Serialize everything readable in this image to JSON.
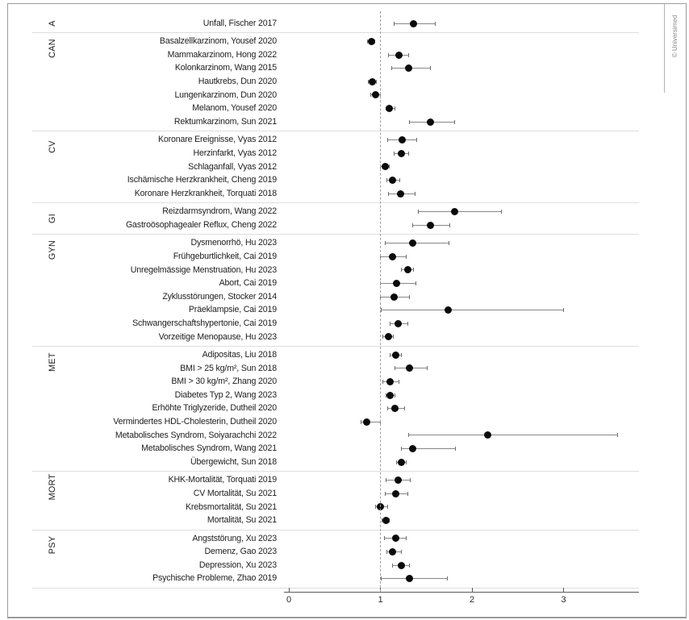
{
  "frame": {
    "copyright": "© Universimed"
  },
  "colors": {
    "point": "#0a0a0a",
    "ci_line": "#878787",
    "ci_cap": "#6d6d6d",
    "separator": "#dedede",
    "axis": "#5a5a5a",
    "reference_dash": "#9f9f9f",
    "text": "#1c1c1c",
    "frame_border": "#9b9b9b",
    "copyright_text": "#8a8a8a"
  },
  "chart_data": {
    "type": "scatter",
    "subtype": "forest-plot",
    "title": "",
    "xlabel": "",
    "ylabel": "",
    "x_axis": {
      "min": 0,
      "max": 3.82,
      "ticks": [
        0,
        1,
        2,
        3
      ],
      "reference_line": 1,
      "grid": false
    },
    "groups": [
      {
        "label": "A",
        "items": [
          {
            "label": "Unfall, Fischer 2017",
            "estimate": 1.36,
            "ci_low": 1.15,
            "ci_high": 1.6
          }
        ]
      },
      {
        "label": "CAN",
        "items": [
          {
            "label": "Basalzellkarzinom, Yousef 2020",
            "estimate": 0.9,
            "ci_low": 0.86,
            "ci_high": 0.94
          },
          {
            "label": "Mammakarzinom, Hong 2022",
            "estimate": 1.2,
            "ci_low": 1.09,
            "ci_high": 1.31
          },
          {
            "label": "Kolonkarzinom, Wang 2015",
            "estimate": 1.31,
            "ci_low": 1.12,
            "ci_high": 1.55
          },
          {
            "label": "Hautkrebs, Dun 2020",
            "estimate": 0.91,
            "ci_low": 0.87,
            "ci_high": 0.96
          },
          {
            "label": "Lungenkarzinom, Dun 2020",
            "estimate": 0.95,
            "ci_low": 0.89,
            "ci_high": 1.0
          },
          {
            "label": "Melanom, Yousef 2020",
            "estimate": 1.1,
            "ci_low": 1.06,
            "ci_high": 1.16
          },
          {
            "label": "Rektumkarzinom, Sun 2021",
            "estimate": 1.55,
            "ci_low": 1.32,
            "ci_high": 1.81
          }
        ]
      },
      {
        "label": "CV",
        "items": [
          {
            "label": "Koronare Ereignisse, Vyas 2012",
            "estimate": 1.24,
            "ci_low": 1.08,
            "ci_high": 1.4
          },
          {
            "label": "Herzinfarkt, Vyas 2012",
            "estimate": 1.23,
            "ci_low": 1.15,
            "ci_high": 1.31
          },
          {
            "label": "Schlaganfall, Vyas 2012",
            "estimate": 1.05,
            "ci_low": 1.0,
            "ci_high": 1.1
          },
          {
            "label": "Ischämische Herzkrankheit, Cheng 2019",
            "estimate": 1.13,
            "ci_low": 1.07,
            "ci_high": 1.21
          },
          {
            "label": "Koronare Herzkrankheit, Torquati 2018",
            "estimate": 1.22,
            "ci_low": 1.09,
            "ci_high": 1.38
          }
        ]
      },
      {
        "label": "GI",
        "items": [
          {
            "label": "Reizdarmsyndrom, Wang 2022",
            "estimate": 1.81,
            "ci_low": 1.41,
            "ci_high": 2.32
          },
          {
            "label": "Gastroösophagealer Reflux, Cheng 2022",
            "estimate": 1.55,
            "ci_low": 1.35,
            "ci_high": 1.76
          }
        ]
      },
      {
        "label": "GYN",
        "items": [
          {
            "label": "Dysmenorrhö, Hu 2023",
            "estimate": 1.35,
            "ci_low": 1.05,
            "ci_high": 1.75
          },
          {
            "label": "Frühgeburtlichkeit, Cai 2019",
            "estimate": 1.13,
            "ci_low": 1.0,
            "ci_high": 1.28
          },
          {
            "label": "Unregelmässige Menstruation, Hu 2023",
            "estimate": 1.3,
            "ci_low": 1.23,
            "ci_high": 1.36
          },
          {
            "label": "Abort, Cai 2019",
            "estimate": 1.18,
            "ci_low": 1.0,
            "ci_high": 1.39
          },
          {
            "label": "Zyklusstörungen, Stocker 2014",
            "estimate": 1.15,
            "ci_low": 1.0,
            "ci_high": 1.32
          },
          {
            "label": "Präeklampsie, Cai 2019",
            "estimate": 1.74,
            "ci_low": 1.01,
            "ci_high": 3.0
          },
          {
            "label": "Schwangerschaftshypertonie, Cai 2019",
            "estimate": 1.19,
            "ci_low": 1.11,
            "ci_high": 1.3
          },
          {
            "label": "Vorzeitige Menopause, Hu 2023",
            "estimate": 1.09,
            "ci_low": 1.03,
            "ci_high": 1.14
          }
        ]
      },
      {
        "label": "MET",
        "items": [
          {
            "label": "Adipositas, Liu 2018",
            "estimate": 1.17,
            "ci_low": 1.11,
            "ci_high": 1.23
          },
          {
            "label": "BMI > 25 kg/m², Sun 2018",
            "estimate": 1.32,
            "ci_low": 1.16,
            "ci_high": 1.51
          },
          {
            "label": "BMI > 30 kg/m², Zhang 2020",
            "estimate": 1.11,
            "ci_low": 1.03,
            "ci_high": 1.2
          },
          {
            "label": "Diabetes Typ 2, Wang 2023",
            "estimate": 1.11,
            "ci_low": 1.06,
            "ci_high": 1.16
          },
          {
            "label": "Erhöhte Triglyzeride, Dutheil 2020",
            "estimate": 1.16,
            "ci_low": 1.08,
            "ci_high": 1.26
          },
          {
            "label": "Vermindertes HDL-Cholesterin, Dutheil 2020",
            "estimate": 0.85,
            "ci_low": 0.79,
            "ci_high": 1.0
          },
          {
            "label": "Metabolisches Syndrom, Soiyarachchi 2022",
            "estimate": 2.17,
            "ci_low": 1.31,
            "ci_high": 3.59
          },
          {
            "label": "Metabolisches Syndrom, Wang 2021",
            "estimate": 1.35,
            "ci_low": 1.23,
            "ci_high": 1.82
          },
          {
            "label": "Übergewicht, Sun 2018",
            "estimate": 1.23,
            "ci_low": 1.18,
            "ci_high": 1.28
          }
        ]
      },
      {
        "label": "MORT",
        "items": [
          {
            "label": "KHK-Mortalität, Torquati 2019",
            "estimate": 1.19,
            "ci_low": 1.06,
            "ci_high": 1.33
          },
          {
            "label": "CV Mortalität, Su 2021",
            "estimate": 1.17,
            "ci_low": 1.05,
            "ci_high": 1.3
          },
          {
            "label": "Krebsmortalität, Su 2021",
            "estimate": 1.0,
            "ci_low": 0.95,
            "ci_high": 1.08
          },
          {
            "label": "Mortalität, Su 2021",
            "estimate": 1.06,
            "ci_low": 1.02,
            "ci_high": 1.1
          }
        ]
      },
      {
        "label": "PSY",
        "items": [
          {
            "label": "Angststörung, Xu 2023",
            "estimate": 1.17,
            "ci_low": 1.04,
            "ci_high": 1.28
          },
          {
            "label": "Demenz, Gao 2023",
            "estimate": 1.13,
            "ci_low": 1.07,
            "ci_high": 1.23
          },
          {
            "label": "Depression, Xu 2023",
            "estimate": 1.23,
            "ci_low": 1.13,
            "ci_high": 1.32
          },
          {
            "label": "Psychische Probleme, Zhao 2019",
            "estimate": 1.32,
            "ci_low": 1.01,
            "ci_high": 1.73
          }
        ]
      }
    ]
  }
}
